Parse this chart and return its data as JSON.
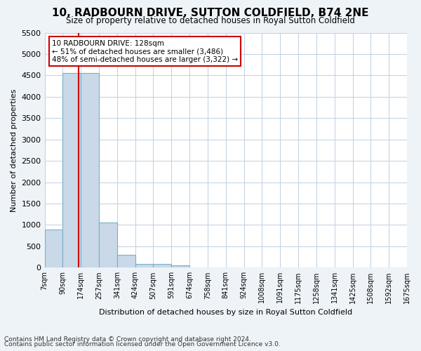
{
  "title": "10, RADBOURN DRIVE, SUTTON COLDFIELD, B74 2NE",
  "subtitle": "Size of property relative to detached houses in Royal Sutton Coldfield",
  "xlabel": "Distribution of detached houses by size in Royal Sutton Coldfield",
  "ylabel": "Number of detached properties",
  "bin_labels": [
    "7sqm",
    "90sqm",
    "174sqm",
    "257sqm",
    "341sqm",
    "424sqm",
    "507sqm",
    "591sqm",
    "674sqm",
    "758sqm",
    "841sqm",
    "924sqm",
    "1008sqm",
    "1091sqm",
    "1175sqm",
    "1258sqm",
    "1341sqm",
    "1425sqm",
    "1508sqm",
    "1592sqm",
    "1675sqm"
  ],
  "bar_values": [
    900,
    4550,
    4550,
    1050,
    300,
    80,
    80,
    60,
    0,
    0,
    0,
    0,
    0,
    0,
    0,
    0,
    0,
    0,
    0,
    0
  ],
  "bar_color": "#c9d9e8",
  "bar_edge_color": "#7aaec8",
  "property_line_x": 1.38,
  "property_size": 128,
  "annotation_text": "10 RADBOURN DRIVE: 128sqm\n← 51% of detached houses are smaller (3,486)\n48% of semi-detached houses are larger (3,322) →",
  "annotation_box_color": "#ffffff",
  "annotation_edge_color": "#cc0000",
  "property_line_color": "#cc0000",
  "ylim": [
    0,
    5500
  ],
  "yticks": [
    0,
    500,
    1000,
    1500,
    2000,
    2500,
    3000,
    3500,
    4000,
    4500,
    5000,
    5500
  ],
  "footnote1": "Contains HM Land Registry data © Crown copyright and database right 2024.",
  "footnote2": "Contains public sector information licensed under the Open Government Licence v3.0.",
  "bg_color": "#eef3f8",
  "plot_bg_color": "#ffffff",
  "grid_color": "#c0d0e0"
}
